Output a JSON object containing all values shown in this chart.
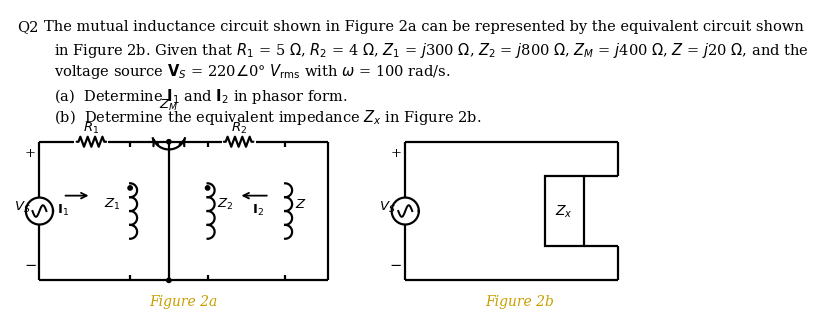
{
  "bg_color": "#ffffff",
  "fig2a_label": "Figure 2a",
  "fig2b_label": "Figure 2b",
  "line1": "The mutual inductance circuit shown in Figure 2a can be represented by the equivalent circuit shown",
  "line2": "in Figure 2b. Given that $R_1$ = 5 $\\Omega$, $R_2$ = 4 $\\Omega$, $Z_1$ = $j$300 $\\Omega$, $Z_2$ = $j$800 $\\Omega$, $Z_M$ = $j$400 $\\Omega$, $Z$ = $j$20 $\\Omega$, and the",
  "line3": "voltage source $\\mathbf{V}_S$ = 220$\\angle$0° $V_{\\rm rms}$ with $\\omega$ = 100 rad/s.",
  "suba": "(a)  Determine $\\mathbf{I}_1$ and $\\mathbf{I}_2$ in phasor form.",
  "subb": "(b)  Determine the equivalent impedance $Z_x$ in Figure 2b.",
  "lw": 1.6,
  "fs_main": 10.5,
  "fs_circuit": 9.5
}
